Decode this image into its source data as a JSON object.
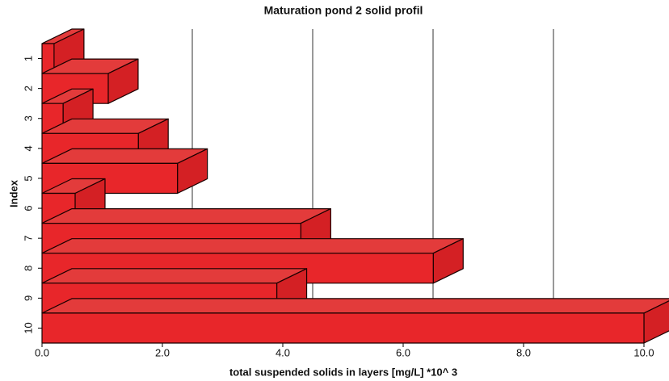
{
  "chart_data": {
    "type": "bar3d",
    "orientation": "horizontal",
    "title": "Maturation pond 2 solid profil",
    "x_label": "total suspended solids in layers [mg/L] *10^ 3",
    "y_label": "Index",
    "categories": [
      "1",
      "2",
      "3",
      "4",
      "5",
      "6",
      "7",
      "8",
      "9",
      "10"
    ],
    "values": [
      0.2,
      1.1,
      0.35,
      1.6,
      2.25,
      0.55,
      4.3,
      6.5,
      3.9,
      10.0
    ],
    "color": "#e8262a",
    "xlim": [
      0,
      10
    ],
    "xticks": [
      {
        "value": 0,
        "label": "0.0"
      },
      {
        "value": 2,
        "label": "2.0"
      },
      {
        "value": 4,
        "label": "4.0"
      },
      {
        "value": 6,
        "label": "6.0"
      },
      {
        "value": 8,
        "label": "8.0"
      },
      {
        "value": 10,
        "label": "10.0"
      }
    ],
    "grid": true
  }
}
